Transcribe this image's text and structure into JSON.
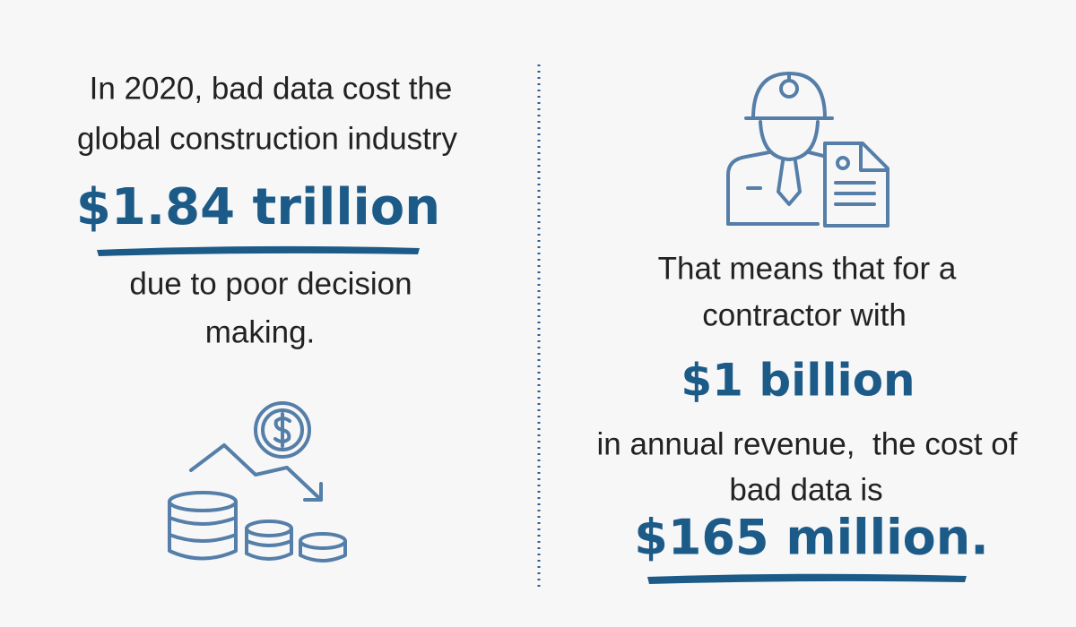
{
  "left": {
    "intro_lines": [
      "In 2020, bad data cost the",
      "global construction industry"
    ],
    "figure": "$1.84 trillion",
    "outro_lines": [
      "due to poor decision",
      "making."
    ]
  },
  "right": {
    "intro_lines": [
      "That means that for a",
      "contractor with"
    ],
    "figure": "$1 billion",
    "middle_lines": [
      "in annual revenue,  the cost of",
      "bad data is"
    ],
    "result": "$165 million."
  }
}
